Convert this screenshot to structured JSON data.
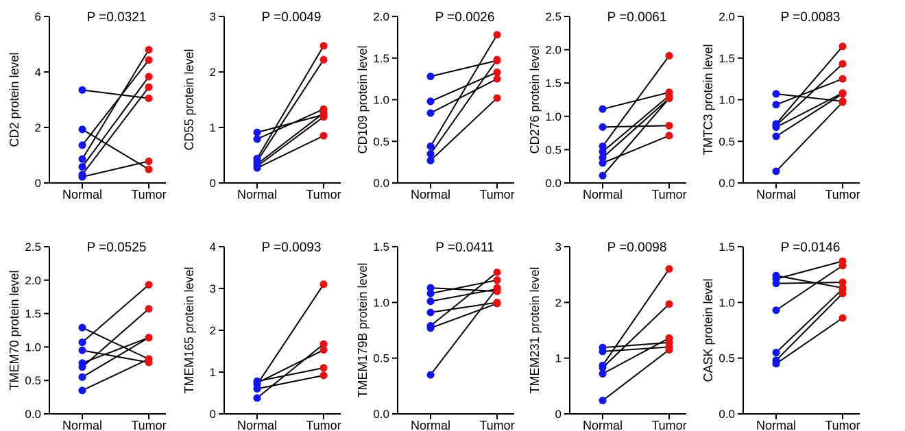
{
  "colors": {
    "normal": "#1414f0",
    "tumor": "#e81010",
    "line": "#000000"
  },
  "chart_data": [
    {
      "type": "scatter",
      "title": "P =0.0321",
      "ylabel": "CD2 protein level",
      "categories": [
        "Normal",
        "Tumor"
      ],
      "ylim": [
        0,
        6
      ],
      "yticks": [
        0,
        2,
        4,
        6
      ],
      "pairs": [
        [
          3.35,
          3.05
        ],
        [
          1.93,
          0.49
        ],
        [
          1.36,
          4.43
        ],
        [
          0.86,
          4.8
        ],
        [
          0.58,
          3.83
        ],
        [
          0.3,
          3.45
        ],
        [
          0.22,
          0.78
        ]
      ]
    },
    {
      "type": "scatter",
      "title": "P =0.0049",
      "ylabel": "CD55 protein level",
      "categories": [
        "Normal",
        "Tumor"
      ],
      "ylim": [
        0,
        3
      ],
      "yticks": [
        0,
        1,
        2,
        3
      ],
      "pairs": [
        [
          0.91,
          1.23
        ],
        [
          0.79,
          1.33
        ],
        [
          0.44,
          2.47
        ],
        [
          0.39,
          2.22
        ],
        [
          0.34,
          1.26
        ],
        [
          0.3,
          1.19
        ],
        [
          0.27,
          0.85
        ]
      ]
    },
    {
      "type": "scatter",
      "title": "P =0.0026",
      "ylabel": "CD109 protein level",
      "categories": [
        "Normal",
        "Tumor"
      ],
      "ylim": [
        0,
        2.0
      ],
      "yticks": [
        "0.0",
        "0.5",
        "1.0",
        "1.5",
        "2.0"
      ],
      "pairs": [
        [
          1.28,
          1.47
        ],
        [
          0.98,
          1.33
        ],
        [
          0.84,
          1.25
        ],
        [
          0.44,
          1.78
        ],
        [
          0.35,
          1.48
        ],
        [
          0.27,
          1.02
        ]
      ]
    },
    {
      "type": "scatter",
      "title": "P =0.0061",
      "ylabel": "CD276 protein level",
      "categories": [
        "Normal",
        "Tumor"
      ],
      "ylim": [
        0,
        2.5
      ],
      "yticks": [
        "0.0",
        "0.5",
        "1.0",
        "1.5",
        "2.0",
        "2.5"
      ],
      "pairs": [
        [
          1.11,
          1.36
        ],
        [
          0.84,
          0.86
        ],
        [
          0.55,
          1.91
        ],
        [
          0.47,
          1.31
        ],
        [
          0.38,
          1.27
        ],
        [
          0.3,
          0.71
        ],
        [
          0.11,
          1.27
        ]
      ]
    },
    {
      "type": "scatter",
      "title": "P =0.0083",
      "ylabel": "TMTC3 protein level",
      "categories": [
        "Normal",
        "Tumor"
      ],
      "ylim": [
        0,
        2.0
      ],
      "yticks": [
        "0.0",
        "0.5",
        "1.0",
        "1.5",
        "2.0"
      ],
      "pairs": [
        [
          1.07,
          0.98
        ],
        [
          0.94,
          1.25
        ],
        [
          0.71,
          1.64
        ],
        [
          0.69,
          1.43
        ],
        [
          0.67,
          1.08
        ],
        [
          0.56,
          1.07
        ],
        [
          0.14,
          0.97
        ]
      ]
    },
    {
      "type": "scatter",
      "title": "P =0.0525",
      "ylabel": "TMEM70 protein level",
      "categories": [
        "Normal",
        "Tumor"
      ],
      "ylim": [
        0,
        2.5
      ],
      "yticks": [
        "0.0",
        "0.5",
        "1.0",
        "1.5",
        "2.0",
        "2.5"
      ],
      "pairs": [
        [
          1.29,
          0.82
        ],
        [
          1.07,
          1.93
        ],
        [
          0.95,
          0.77
        ],
        [
          0.76,
          1.14
        ],
        [
          0.7,
          1.57
        ],
        [
          0.55,
          1.14
        ],
        [
          0.35,
          0.82
        ]
      ]
    },
    {
      "type": "scatter",
      "title": "P =0.0093",
      "ylabel": "TMEM165 protein level",
      "categories": [
        "Normal",
        "Tumor"
      ],
      "ylim": [
        0,
        4
      ],
      "yticks": [
        0,
        1,
        2,
        3,
        4
      ],
      "pairs": [
        [
          0.78,
          1.1
        ],
        [
          0.74,
          1.53
        ],
        [
          0.7,
          3.1
        ],
        [
          0.6,
          0.92
        ],
        [
          0.38,
          1.67
        ]
      ]
    },
    {
      "type": "scatter",
      "title": "P =0.0411",
      "ylabel": "TMEM179B protein level",
      "categories": [
        "Normal",
        "Tumor"
      ],
      "ylim": [
        0,
        1.5
      ],
      "yticks": [
        "0.0",
        "0.5",
        "1.0",
        "1.5"
      ],
      "pairs": [
        [
          1.13,
          1.1
        ],
        [
          1.08,
          1.2
        ],
        [
          1.01,
          1.12
        ],
        [
          0.91,
          1.0
        ],
        [
          0.79,
          1.27
        ],
        [
          0.77,
          0.99
        ],
        [
          0.35,
          1.13
        ]
      ]
    },
    {
      "type": "scatter",
      "title": "P =0.0098",
      "ylabel": "TMEM231 protein level",
      "categories": [
        "Normal",
        "Tumor"
      ],
      "ylim": [
        0,
        3
      ],
      "yticks": [
        0,
        1,
        2,
        3
      ],
      "pairs": [
        [
          1.19,
          1.28
        ],
        [
          1.12,
          1.2
        ],
        [
          0.87,
          2.6
        ],
        [
          0.83,
          1.97
        ],
        [
          0.72,
          1.36
        ],
        [
          0.24,
          1.15
        ]
      ]
    },
    {
      "type": "scatter",
      "title": "P =0.0146",
      "ylabel": "CASK protein level",
      "categories": [
        "Normal",
        "Tumor"
      ],
      "ylim": [
        0,
        1.5
      ],
      "yticks": [
        "0.0",
        "0.5",
        "1.0",
        "1.5"
      ],
      "pairs": [
        [
          1.24,
          1.13
        ],
        [
          1.21,
          1.37
        ],
        [
          1.17,
          1.18
        ],
        [
          0.93,
          1.33
        ],
        [
          0.55,
          1.12
        ],
        [
          0.48,
          1.08
        ],
        [
          0.45,
          0.86
        ]
      ]
    }
  ]
}
